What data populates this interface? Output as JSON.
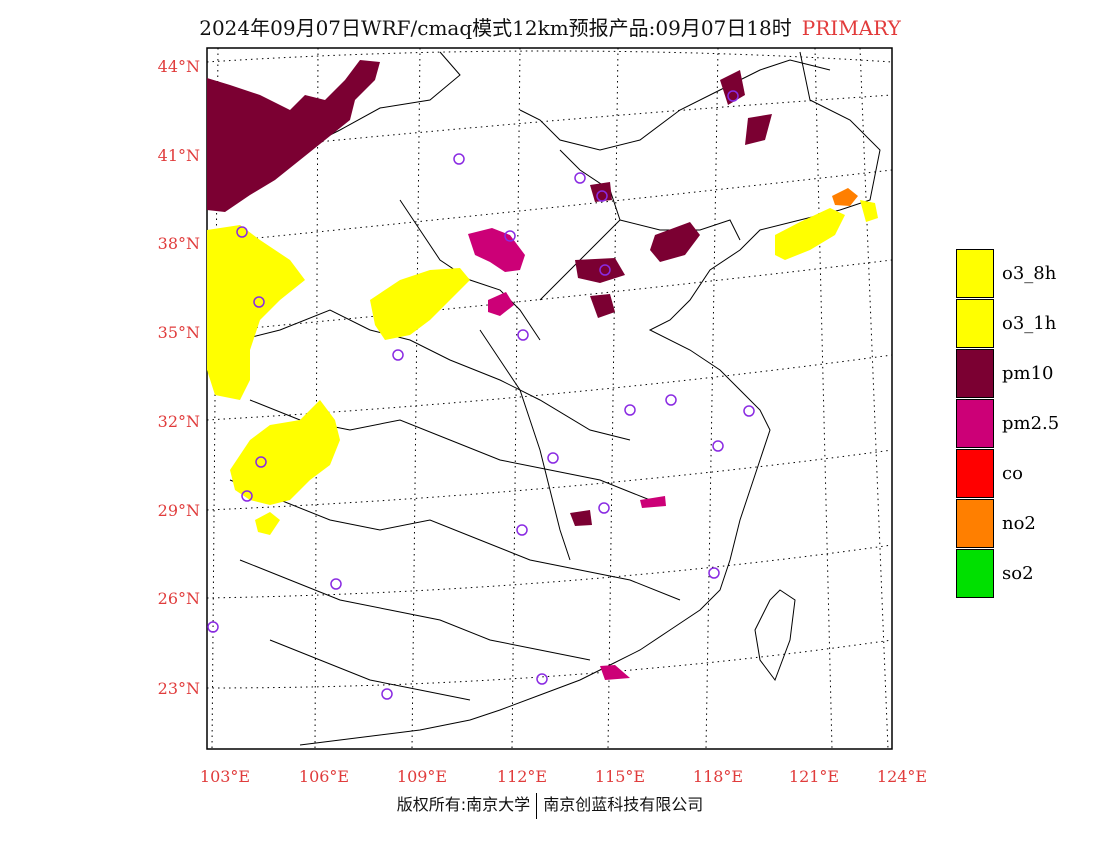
{
  "header": {
    "title": "2024年09月07日WRF/cmaq模式12km预报产品:09月07日18时",
    "mode": "PRIMARY"
  },
  "map": {
    "lat_labels": [
      "44°N",
      "41°N",
      "38°N",
      "35°N",
      "32°N",
      "29°N",
      "26°N",
      "23°N"
    ],
    "lon_labels": [
      "103°E",
      "106°E",
      "109°E",
      "112°E",
      "115°E",
      "118°E",
      "121°E",
      "124°E"
    ]
  },
  "legend": {
    "items": [
      {
        "label": "o3_8h",
        "color": "#ffff00"
      },
      {
        "label": "o3_1h",
        "color": "#ffff00"
      },
      {
        "label": "pm10",
        "color": "#7b0032"
      },
      {
        "label": "pm2.5",
        "color": "#cc0077"
      },
      {
        "label": "co",
        "color": "#ff0000"
      },
      {
        "label": "no2",
        "color": "#ff7f00"
      },
      {
        "label": "so2",
        "color": "#00e000"
      }
    ]
  },
  "footer": {
    "left": "版权所有:南京大学",
    "right": "南京创蓝科技有限公司"
  }
}
